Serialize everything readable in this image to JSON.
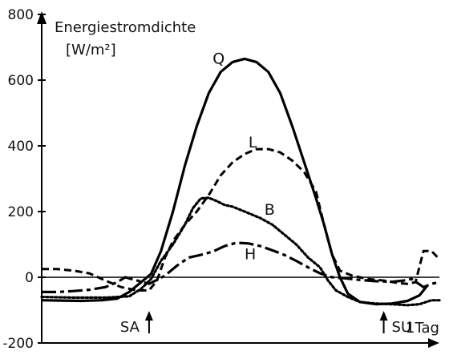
{
  "chart_data": {
    "type": "line",
    "ylabel_line1": "Energiestromdichte",
    "ylabel_line2": "[W/m²]",
    "ylim": [
      -200,
      800
    ],
    "xlim": [
      0,
      1
    ],
    "yticks": [
      "800",
      "600",
      "400",
      "200",
      "0",
      "-200"
    ],
    "ytick_values": [
      800,
      600,
      400,
      200,
      0,
      -200
    ],
    "x_end_label": "1Tag",
    "markers": [
      {
        "label": "SA",
        "x": 0.27
      },
      {
        "label": "SU",
        "x": 0.86
      }
    ],
    "series": [
      {
        "name": "Q",
        "style": "solid",
        "width": 3.2,
        "label_x": 0.43,
        "label_y": 650,
        "points": [
          [
            0.0,
            -70
          ],
          [
            0.05,
            -71
          ],
          [
            0.1,
            -72
          ],
          [
            0.15,
            -70
          ],
          [
            0.19,
            -65
          ],
          [
            0.22,
            -45
          ],
          [
            0.25,
            -15
          ],
          [
            0.275,
            10
          ],
          [
            0.3,
            80
          ],
          [
            0.33,
            200
          ],
          [
            0.36,
            340
          ],
          [
            0.39,
            460
          ],
          [
            0.42,
            560
          ],
          [
            0.45,
            625
          ],
          [
            0.48,
            655
          ],
          [
            0.51,
            665
          ],
          [
            0.54,
            655
          ],
          [
            0.57,
            625
          ],
          [
            0.6,
            560
          ],
          [
            0.63,
            460
          ],
          [
            0.66,
            350
          ],
          [
            0.69,
            240
          ],
          [
            0.71,
            160
          ],
          [
            0.73,
            70
          ],
          [
            0.75,
            0
          ],
          [
            0.77,
            -50
          ],
          [
            0.8,
            -75
          ],
          [
            0.84,
            -82
          ],
          [
            0.88,
            -80
          ],
          [
            0.92,
            -72
          ],
          [
            0.95,
            -55
          ],
          [
            0.97,
            -25
          ]
        ]
      },
      {
        "name": "L",
        "style": "dashed",
        "width": 3.0,
        "label_x": 0.52,
        "label_y": 395,
        "points": [
          [
            0.0,
            25
          ],
          [
            0.04,
            25
          ],
          [
            0.08,
            20
          ],
          [
            0.12,
            12
          ],
          [
            0.16,
            -10
          ],
          [
            0.2,
            -30
          ],
          [
            0.24,
            -40
          ],
          [
            0.27,
            -40
          ],
          [
            0.29,
            -10
          ],
          [
            0.31,
            60
          ],
          [
            0.33,
            110
          ],
          [
            0.36,
            160
          ],
          [
            0.39,
            200
          ],
          [
            0.42,
            250
          ],
          [
            0.45,
            310
          ],
          [
            0.48,
            350
          ],
          [
            0.51,
            375
          ],
          [
            0.54,
            390
          ],
          [
            0.57,
            390
          ],
          [
            0.6,
            380
          ],
          [
            0.63,
            355
          ],
          [
            0.66,
            320
          ],
          [
            0.69,
            260
          ],
          [
            0.71,
            160
          ],
          [
            0.73,
            70
          ],
          [
            0.75,
            20
          ],
          [
            0.78,
            5
          ],
          [
            0.82,
            -5
          ],
          [
            0.86,
            -10
          ],
          [
            0.9,
            -18
          ],
          [
            0.92,
            -20
          ],
          [
            0.94,
            -15
          ],
          [
            0.96,
            80
          ],
          [
            0.98,
            80
          ],
          [
            1.0,
            55
          ]
        ]
      },
      {
        "name": "B",
        "style": "dotted",
        "width": 3.2,
        "label_x": 0.56,
        "label_y": 190,
        "points": [
          [
            0.0,
            -60
          ],
          [
            0.08,
            -62
          ],
          [
            0.16,
            -62
          ],
          [
            0.22,
            -58
          ],
          [
            0.25,
            -35
          ],
          [
            0.275,
            -5
          ],
          [
            0.3,
            50
          ],
          [
            0.33,
            100
          ],
          [
            0.36,
            160
          ],
          [
            0.38,
            210
          ],
          [
            0.4,
            240
          ],
          [
            0.42,
            242
          ],
          [
            0.44,
            232
          ],
          [
            0.46,
            220
          ],
          [
            0.48,
            215
          ],
          [
            0.5,
            205
          ],
          [
            0.52,
            195
          ],
          [
            0.55,
            180
          ],
          [
            0.58,
            160
          ],
          [
            0.61,
            130
          ],
          [
            0.64,
            100
          ],
          [
            0.67,
            60
          ],
          [
            0.7,
            30
          ],
          [
            0.72,
            -10
          ],
          [
            0.74,
            -40
          ],
          [
            0.77,
            -60
          ],
          [
            0.8,
            -75
          ],
          [
            0.84,
            -80
          ],
          [
            0.88,
            -82
          ],
          [
            0.92,
            -85
          ],
          [
            0.95,
            -82
          ],
          [
            0.98,
            -70
          ],
          [
            1.0,
            -70
          ]
        ]
      },
      {
        "name": "H",
        "style": "dashdot",
        "width": 3.2,
        "label_x": 0.51,
        "label_y": 55,
        "points": [
          [
            0.0,
            -45
          ],
          [
            0.04,
            -45
          ],
          [
            0.08,
            -42
          ],
          [
            0.12,
            -38
          ],
          [
            0.16,
            -30
          ],
          [
            0.19,
            -15
          ],
          [
            0.21,
            0
          ],
          [
            0.24,
            -10
          ],
          [
            0.27,
            -20
          ],
          [
            0.29,
            -8
          ],
          [
            0.31,
            5
          ],
          [
            0.34,
            35
          ],
          [
            0.37,
            60
          ],
          [
            0.4,
            68
          ],
          [
            0.43,
            78
          ],
          [
            0.46,
            95
          ],
          [
            0.49,
            105
          ],
          [
            0.52,
            103
          ],
          [
            0.55,
            95
          ],
          [
            0.58,
            82
          ],
          [
            0.61,
            68
          ],
          [
            0.64,
            50
          ],
          [
            0.67,
            30
          ],
          [
            0.7,
            12
          ],
          [
            0.73,
            0
          ],
          [
            0.76,
            -3
          ],
          [
            0.8,
            -8
          ],
          [
            0.84,
            -12
          ],
          [
            0.88,
            -14
          ],
          [
            0.91,
            -10
          ],
          [
            0.93,
            -5
          ],
          [
            0.96,
            -30
          ],
          [
            0.98,
            -20
          ],
          [
            1.0,
            -15
          ]
        ]
      }
    ]
  }
}
